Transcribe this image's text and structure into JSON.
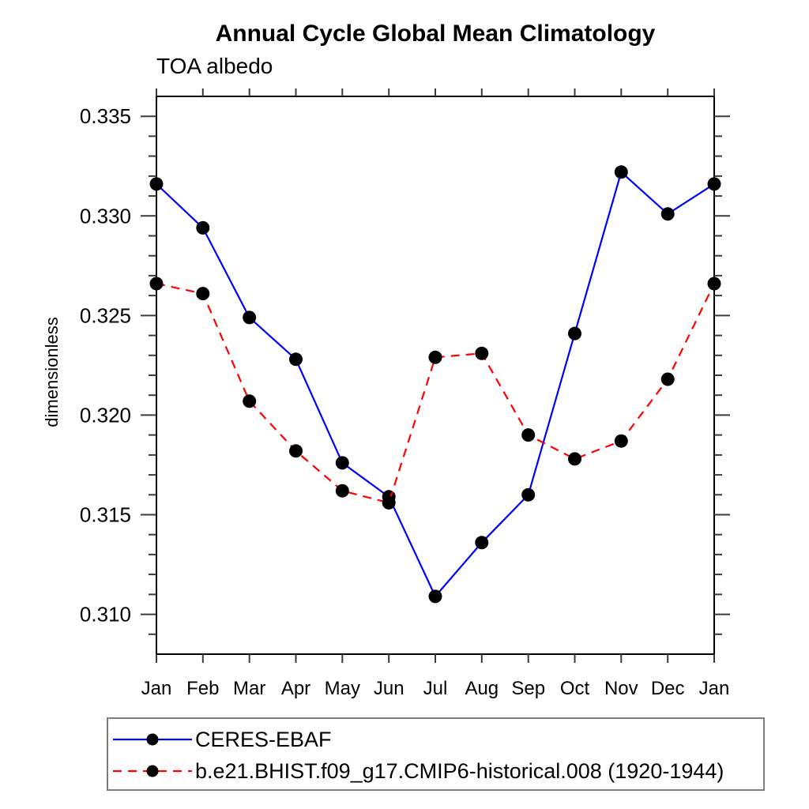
{
  "chart_data": {
    "type": "line",
    "title": "Annual Cycle Global Mean Climatology",
    "subtitle": "TOA albedo",
    "xlabel": "",
    "ylabel": "dimensionless",
    "categories": [
      "Jan",
      "Feb",
      "Mar",
      "Apr",
      "May",
      "Jun",
      "Jul",
      "Aug",
      "Sep",
      "Oct",
      "Nov",
      "Dec",
      "Jan"
    ],
    "series": [
      {
        "name": "CERES-EBAF",
        "color": "#0000ff",
        "line_style": "solid",
        "marker": "filled-circle",
        "marker_color": "#000000",
        "values": [
          0.3316,
          0.3294,
          0.3249,
          0.3228,
          0.3176,
          0.3159,
          0.3109,
          0.3136,
          0.316,
          0.3241,
          0.3322,
          0.3301,
          0.3316
        ]
      },
      {
        "name": "b.e21.BHIST.f09_g17.CMIP6-historical.008 (1920-1944)",
        "color": "#ff0000",
        "line_style": "dashed",
        "marker": "filled-circle",
        "marker_color": "#000000",
        "values": [
          0.3266,
          0.3261,
          0.3207,
          0.3182,
          0.3162,
          0.3156,
          0.3229,
          0.3231,
          0.319,
          0.3178,
          0.3187,
          0.3218,
          0.3266
        ]
      }
    ],
    "ylim": [
      0.308,
      0.336
    ],
    "yticks": [
      0.31,
      0.315,
      0.32,
      0.325,
      0.33,
      0.335
    ],
    "ytick_labels": [
      "0.310",
      "0.315",
      "0.320",
      "0.325",
      "0.330",
      "0.335"
    ],
    "minor_tick_step": 0.001,
    "grid": false,
    "legend_position": "bottom-left-box",
    "axis_color": "#000000",
    "tick_color": "#3a3a3a"
  }
}
